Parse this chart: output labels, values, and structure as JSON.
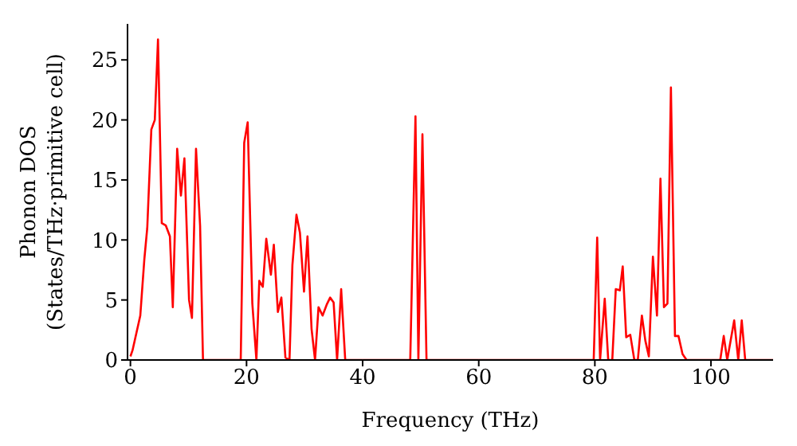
{
  "chart_data": {
    "type": "line",
    "xlabel": "Frequency (THz)",
    "ylabel": "Phonon DOS\n(States/THz·primitive cell)",
    "xlim": [
      -0.5,
      110.7
    ],
    "ylim": [
      0,
      28
    ],
    "xticks": [
      0,
      20,
      40,
      60,
      80,
      100
    ],
    "yticks": [
      0,
      5,
      10,
      15,
      20,
      25
    ],
    "grid": false,
    "legend": false,
    "marker": "none",
    "line_style": "solid",
    "x": [
      0,
      0.36,
      1.7,
      2.4,
      2.9,
      3.6,
      4.2,
      4.75,
      5.4,
      6.1,
      6.8,
      7.3,
      8.05,
      8.7,
      9.3,
      10.1,
      10.6,
      11.3,
      12.0,
      12.5,
      19.0,
      19.6,
      20.2,
      21.0,
      21.7,
      22.2,
      22.8,
      23.4,
      24.2,
      24.7,
      25.4,
      26.0,
      26.7,
      27.4,
      27.9,
      28.6,
      29.2,
      29.9,
      30.5,
      31.2,
      31.8,
      32.4,
      33.1,
      33.8,
      34.4,
      35.0,
      35.6,
      36.3,
      37.0,
      48.2,
      49.1,
      49.6,
      50.3,
      51.0,
      79.8,
      80.4,
      80.9,
      81.7,
      82.3,
      83.0,
      83.6,
      84.3,
      84.8,
      85.4,
      86.1,
      86.8,
      87.4,
      88.1,
      88.7,
      89.3,
      90.0,
      90.7,
      91.3,
      91.9,
      92.5,
      93.1,
      93.8,
      94.4,
      95.1,
      95.8,
      101.6,
      102.2,
      102.8,
      104.0,
      104.7,
      105.3,
      105.9,
      110.7
    ],
    "series": [
      {
        "color": "#ff0000",
        "values": [
          0.3,
          0.8,
          3.7,
          8.4,
          11,
          19.2,
          20,
          26.7,
          11.4,
          11.2,
          10.3,
          4.4,
          17.6,
          13.7,
          16.8,
          5.0,
          3.5,
          17.6,
          11.2,
          0,
          0,
          18.1,
          19.8,
          4.7,
          0,
          6.6,
          6.1,
          10.1,
          7.1,
          9.6,
          4.0,
          5.2,
          0.2,
          0,
          7.9,
          12.1,
          10.6,
          5.7,
          10.3,
          2.6,
          0,
          4.4,
          3.7,
          4.6,
          5.2,
          4.8,
          0,
          5.9,
          0,
          0,
          20.3,
          0,
          18.8,
          0,
          0,
          10.2,
          0,
          5.1,
          0,
          0,
          5.9,
          5.8,
          7.8,
          1.9,
          2.1,
          0,
          0,
          3.7,
          1.6,
          0.3,
          8.6,
          3.7,
          15.1,
          4.4,
          4.7,
          22.7,
          2.0,
          2.0,
          0.5,
          0,
          0,
          2.0,
          0,
          3.3,
          0,
          3.3,
          0,
          0
        ]
      }
    ]
  }
}
